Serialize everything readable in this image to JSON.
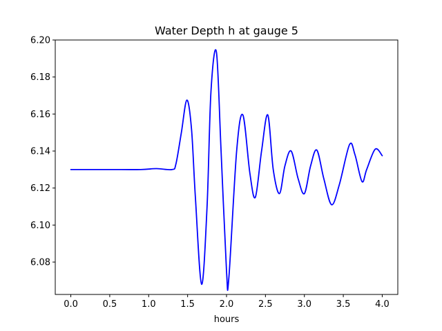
{
  "chart_data": {
    "type": "line",
    "title": "Water Depth h at gauge 5",
    "xlabel": "hours",
    "ylabel": "",
    "xlim": [
      -0.2,
      4.2
    ],
    "ylim": [
      6.0625,
      6.2
    ],
    "grid": false,
    "x_ticks": [
      0.0,
      0.5,
      1.0,
      1.5,
      2.0,
      2.5,
      3.0,
      3.5,
      4.0
    ],
    "x_tick_labels": [
      "0.0",
      "0.5",
      "1.0",
      "1.5",
      "2.0",
      "2.5",
      "3.0",
      "3.5",
      "4.0"
    ],
    "y_ticks": [
      6.08,
      6.1,
      6.12,
      6.14,
      6.16,
      6.18,
      6.2
    ],
    "y_tick_labels": [
      "6.08",
      "6.10",
      "6.12",
      "6.14",
      "6.16",
      "6.18",
      "6.20"
    ],
    "series": [
      {
        "color": "#0000ff",
        "x": [
          0.0,
          0.5,
          0.9,
          1.1,
          1.3,
          1.35,
          1.42,
          1.49,
          1.55,
          1.6,
          1.68,
          1.75,
          1.8,
          1.87,
          1.93,
          2.0,
          2.03,
          2.13,
          2.21,
          2.3,
          2.37,
          2.45,
          2.53,
          2.6,
          2.68,
          2.75,
          2.83,
          2.92,
          3.0,
          3.08,
          3.16,
          3.25,
          3.35,
          3.45,
          3.58,
          3.65,
          3.74,
          3.8,
          3.91,
          4.0
        ],
        "y": [
          6.13,
          6.13,
          6.13,
          6.1305,
          6.13,
          6.133,
          6.15,
          6.1675,
          6.152,
          6.115,
          6.068,
          6.11,
          6.172,
          6.1935,
          6.14,
          6.075,
          6.0715,
          6.14,
          6.1595,
          6.128,
          6.115,
          6.14,
          6.1595,
          6.13,
          6.117,
          6.132,
          6.14,
          6.125,
          6.117,
          6.132,
          6.1405,
          6.125,
          6.111,
          6.122,
          6.1435,
          6.138,
          6.1235,
          6.13,
          6.141,
          6.1375
        ]
      }
    ]
  }
}
